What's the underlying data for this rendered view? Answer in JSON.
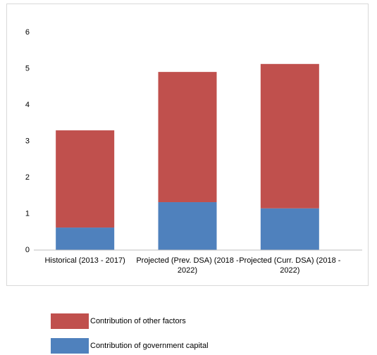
{
  "chart_data": {
    "type": "stacked_bar",
    "categories": [
      "Historical (2013 - 2017)",
      "Projected (Prev. DSA) (2018 - 2022)",
      "Projected (Curr. DSA) (2018 - 2022)"
    ],
    "series": [
      {
        "name": "Contribution of government capital",
        "color": "#4f81bd",
        "values": [
          0.62,
          1.32,
          1.15
        ]
      },
      {
        "name": "Contribution of other factors",
        "color": "#c0504d",
        "values": [
          2.68,
          3.59,
          3.98
        ]
      }
    ],
    "ylim": [
      0,
      6
    ],
    "yticks": [
      0,
      1,
      2,
      3,
      4,
      5,
      6
    ],
    "grid": false,
    "legend": "bottom"
  }
}
